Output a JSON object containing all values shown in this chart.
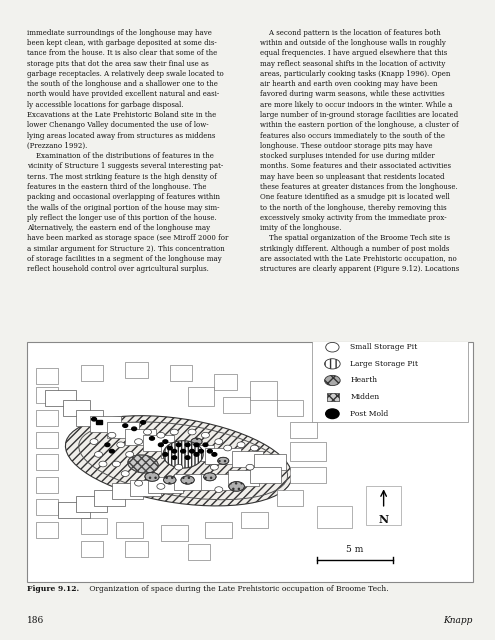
{
  "title": "Figure 9.12.",
  "caption_bold": "Figure 9.12.",
  "caption_rest": " Organization of space during the Late Prehistoric occupation of Broome Tech.",
  "page_number": "186",
  "author": "Knapp",
  "bg_color": "#f2f2ee",
  "legend_items": [
    "Small Storage Pit",
    "Large Storage Pit",
    "Hearth",
    "Midden",
    "Post Mold"
  ],
  "scale_label": "5 m",
  "text_left": "immediate surroundings of the longhouse may have\nbeen kept clean, with garbage deposited at some dis-\ntance from the house. It is also clear that some of the\nstorage pits that dot the area saw their final use as\ngarbage receptacles. A relatively deep swale located to\nthe south of the longhouse and a shallower one to the\nnorth would have provided excellent natural and easi-\nly accessible locations for garbage disposal.\nExcavations at the Late Prehistoric Boland site in the\nlower Chenango Valley documented the use of low-\nlying areas located away from structures as middens\n(Prezzano 1992).\n    Examination of the distributions of features in the\nvicinity of Structure 1 suggests several interesting pat-\nterns. The most striking feature is the high density of\nfeatures in the eastern third of the longhouse. The\npacking and occasional overlapping of features within\nthe walls of the original portion of the house may sim-\nply reflect the longer use of this portion of the house.\nAlternatively, the eastern end of the longhouse may\nhave been marked as storage space (see Miroff 2000 for\na similar argument for Structure 2). This concentration\nof storage facilities in a segment of the longhouse may\nreflect household control over agricultural surplus.",
  "text_right": "    A second pattern is the location of features both\nwithin and outside of the longhouse walls in roughly\nequal frequencies. I have argued elsewhere that this\nmay reflect seasonal shifts in the location of activity\nareas, particularly cooking tasks (Knapp 1996). Open\nair hearth and earth oven cooking may have been\nfavored during warm seasons, while these activities\nare more likely to occur indoors in the winter. While a\nlarge number of in-ground storage facilities are located\nwithin the eastern portion of the longhouse, a cluster of\nfeatures also occurs immediately to the south of the\nlonghouse. These outdoor storage pits may have\nstocked surpluses intended for use during milder\nmonths. Some features and their associated activities\nmay have been so unpleasant that residents located\nthese features at greater distances from the longhouse.\nOne feature identified as a smudge pit is located well\nto the north of the longhouse, thereby removing this\nexcessively smoky activity from the immediate prox-\nimity of the longhouse.\n    The spatial organization of the Broome Tech site is\nstrikingly different. Although a number of post molds\nare associated with the Late Prehistoric occupation, no\nstructures are clearly apparent (Figure 9.12). Locations"
}
